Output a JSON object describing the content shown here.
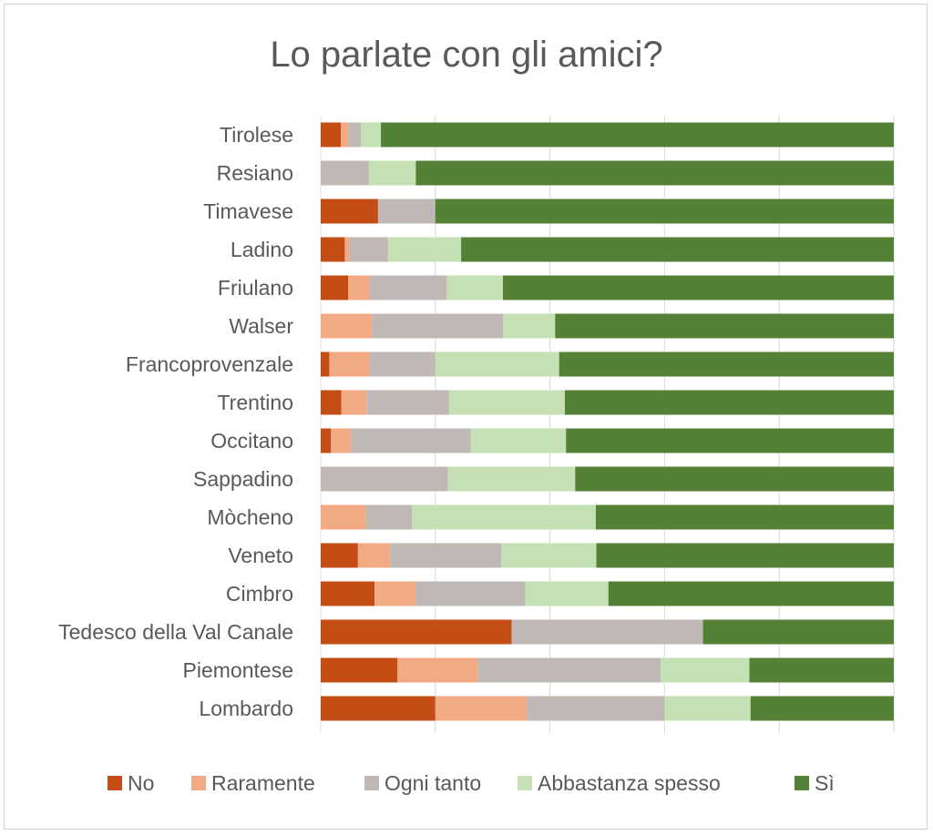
{
  "chart_data": {
    "type": "bar",
    "orientation": "horizontal",
    "stacked": true,
    "title": "Lo parlate con gli amici?",
    "xlabel": "",
    "ylabel": "",
    "xlim": [
      0,
      100
    ],
    "grid": true,
    "legend_position": "bottom",
    "categories": [
      "Tirolese",
      "Resiano",
      "Timavese",
      "Ladino",
      "Friulano",
      "Walser",
      "Francoprovenzale",
      "Trentino",
      "Occitano",
      "Sappadino",
      "Mòcheno",
      "Veneto",
      "Cimbro",
      "Tedesco della Val Canale",
      "Piemontese",
      "Lombardo"
    ],
    "series": [
      {
        "name": "No",
        "color": "#c44d15",
        "values": [
          3.5,
          0,
          10,
          4.2,
          4.8,
          0,
          1.5,
          3.6,
          1.8,
          0,
          0,
          6.5,
          9.4,
          33.3,
          13.4,
          20
        ]
      },
      {
        "name": "Raramente",
        "color": "#f2aa84",
        "values": [
          1.3,
          0,
          0,
          0.8,
          3.8,
          9,
          7.1,
          4.4,
          3.5,
          0,
          7.9,
          5.6,
          7.2,
          0,
          14,
          16
        ]
      },
      {
        "name": "Ogni tanto",
        "color": "#bfb8b4",
        "values": [
          2.2,
          8.4,
          10,
          6.8,
          13.4,
          22.8,
          11.4,
          14.4,
          20.9,
          22.2,
          8,
          19.4,
          19.1,
          33.4,
          31.9,
          24
        ]
      },
      {
        "name": "Abbastanza spesso",
        "color": "#c5e0b4",
        "values": [
          3.5,
          8.2,
          0,
          12.7,
          9.8,
          9.1,
          21.6,
          20.2,
          16.6,
          22.2,
          32.1,
          16.6,
          14.5,
          0,
          15.5,
          15
        ]
      },
      {
        "name": "Sì",
        "color": "#538135",
        "values": [
          89.5,
          83.4,
          80,
          75.5,
          68.2,
          59.1,
          58.4,
          57.4,
          57.2,
          55.6,
          52,
          51.9,
          49.8,
          33.3,
          25.2,
          25
        ]
      }
    ]
  }
}
